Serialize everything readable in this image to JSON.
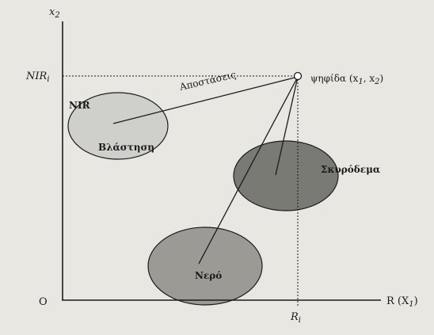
{
  "axes": {
    "y_var": "x",
    "y_sub": "2",
    "x_label": "R  (X",
    "x_sub": "1",
    "x_label_close": ")",
    "origin": "O"
  },
  "guides": {
    "nir_i": "NIR",
    "nir_i_sub": "i",
    "r_i": "R",
    "r_i_sub": "i"
  },
  "pixel": {
    "label": "ψηφίδα (x",
    "sub1": "1",
    "mid": ", x",
    "sub2": "2",
    "close": ")"
  },
  "distances_label": "Αποστάσεις",
  "classes": [
    {
      "name": "Βλάστηση",
      "band_label": "NIR",
      "fill": "#cfcfcb"
    },
    {
      "name": "Σκυρόδεμα",
      "fill": "#7a7a74"
    },
    {
      "name": "Νερό",
      "fill": "#9b9a94"
    }
  ],
  "colors": {
    "background": "#e9e7e2",
    "line": "#1b1b1b"
  }
}
